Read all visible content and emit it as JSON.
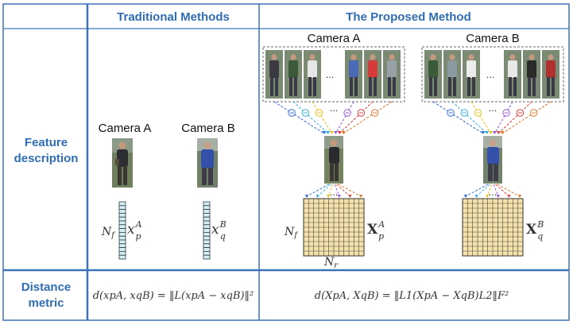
{
  "headers": {
    "traditional": "Traditional Methods",
    "proposed": "The Proposed Method"
  },
  "rows": {
    "feature": [
      "Feature",
      "description"
    ],
    "distance": [
      "Distance",
      "metric"
    ]
  },
  "traditional": {
    "camera_a": "Camera A",
    "camera_b": "Camera B",
    "nf": "N",
    "nf_sub": "f",
    "xa": "x",
    "xa_sup": "A",
    "xa_sub": "p",
    "xb": "x",
    "xb_sup": "B",
    "xb_sub": "q",
    "formula": "d(xpA, xqB) = ‖L(xpA − xqB)‖²"
  },
  "proposed": {
    "camera_a": "Camera A",
    "camera_b": "Camera B",
    "ellipsis": "...",
    "nf": "N",
    "nf_sub": "f",
    "nr": "N",
    "nr_sub": "r",
    "xa": "X",
    "xa_sup": "A",
    "xa_sub": "p",
    "xb": "X",
    "xb_sup": "B",
    "xb_sub": "q",
    "formula": "d(XpA, XqB) = ‖L1(XpA − XqB)L2‖F²"
  },
  "colors": {
    "header": "#2f6db3",
    "border": "#3b73b9",
    "grid_fill": "#f6e3ab",
    "vector_fill": "#d6eef2",
    "streams": [
      "#3a6fd8",
      "#3bb0e0",
      "#e8c020",
      "#9a5ad0",
      "#e04040",
      "#e07a30"
    ]
  }
}
